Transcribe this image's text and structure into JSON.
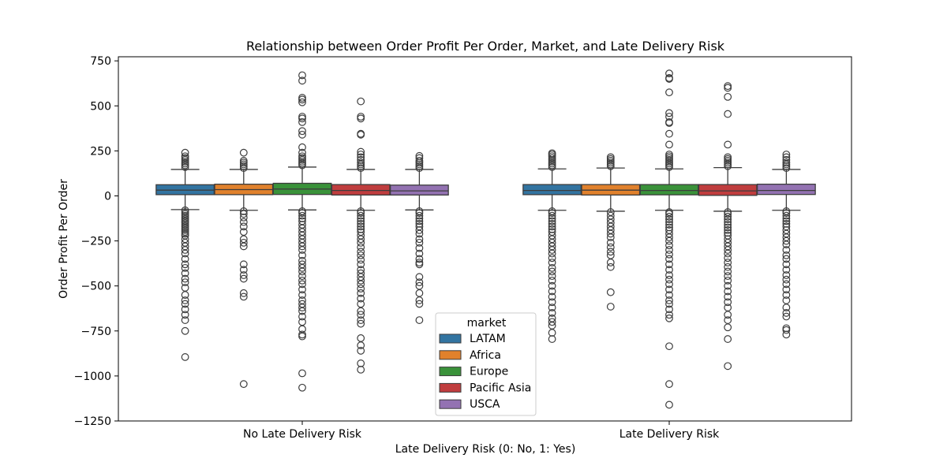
{
  "chart_data": {
    "type": "box",
    "title": "Relationship between Order Profit Per Order, Market, and Late Delivery Risk",
    "xlabel": "Late Delivery Risk (0: No, 1: Yes)",
    "ylabel": "Order Profit Per Order",
    "ylim": [
      -1250,
      770
    ],
    "yticks": [
      750,
      500,
      250,
      0,
      -250,
      -500,
      -750,
      -1000,
      -1250
    ],
    "ytick_labels": [
      "750",
      "500",
      "250",
      "0",
      "−250",
      "−500",
      "−750",
      "−1000",
      "−1250"
    ],
    "categories": [
      "No Late Delivery Risk",
      "Late Delivery Risk"
    ],
    "legend": {
      "title": "market",
      "placement": "lower center"
    },
    "series": [
      {
        "name": "LATAM",
        "color": "#3274a1",
        "boxes": [
          {
            "whisker_low": -76,
            "q1": 7,
            "median": 32,
            "q3": 62,
            "whisker_high": 147,
            "outliers_high": [
              160,
              170,
              180,
              190,
              200,
              210,
              220,
              240
            ],
            "outliers_low": [
              -80,
              -90,
              -100,
              -110,
              -120,
              -130,
              -140,
              -150,
              -160,
              -170,
              -180,
              -190,
              -200,
              -210,
              -220,
              -240,
              -260,
              -280,
              -300,
              -320,
              -350,
              -380,
              -400,
              -430,
              -460,
              -480,
              -510,
              -550,
              -580,
              -600,
              -630,
              -660,
              -690,
              -750,
              -895
            ]
          },
          {
            "whisker_low": -80,
            "q1": 7,
            "median": 30,
            "q3": 63,
            "whisker_high": 150,
            "outliers_high": [
              160,
              170,
              180,
              190,
              200,
              210,
              220,
              230,
              237
            ],
            "outliers_low": [
              -85,
              -95,
              -110,
              -125,
              -140,
              -155,
              -170,
              -185,
              -200,
              -220,
              -240,
              -260,
              -280,
              -300,
              -320,
              -345,
              -370,
              -400,
              -420,
              -445,
              -470,
              -500,
              -530,
              -560,
              -590,
              -620,
              -650,
              -680,
              -700,
              -720,
              -760,
              -795
            ]
          }
        ]
      },
      {
        "name": "Africa",
        "color": "#e1812c",
        "boxes": [
          {
            "whisker_low": -80,
            "q1": 7,
            "median": 35,
            "q3": 65,
            "whisker_high": 147,
            "outliers_high": [
              155,
              165,
              175,
              185,
              195,
              240
            ],
            "outliers_low": [
              -85,
              -100,
              -120,
              -145,
              -170,
              -200,
              -240,
              -260,
              -280,
              -380,
              -410,
              -440,
              -460,
              -540,
              -560,
              -1045
            ]
          },
          {
            "whisker_low": -85,
            "q1": 5,
            "median": 32,
            "q3": 63,
            "whisker_high": 155,
            "outliers_high": [
              165,
              175,
              185,
              195,
              205,
              215
            ],
            "outliers_low": [
              -90,
              -110,
              -130,
              -150,
              -170,
              -190,
              -210,
              -230,
              -260,
              -285,
              -310,
              -330,
              -370,
              -395,
              -535,
              -615
            ]
          }
        ]
      },
      {
        "name": "Europe",
        "color": "#3a923a",
        "boxes": [
          {
            "whisker_low": -78,
            "q1": 8,
            "median": 38,
            "q3": 70,
            "whisker_high": 160,
            "outliers_high": [
              170,
              180,
              190,
              200,
              210,
              220,
              240,
              270,
              340,
              360,
              410,
              430,
              440,
              520,
              535,
              545,
              640,
              670
            ],
            "outliers_low": [
              -85,
              -95,
              -110,
              -125,
              -140,
              -160,
              -180,
              -200,
              -220,
              -240,
              -260,
              -280,
              -300,
              -330,
              -360,
              -380,
              -400,
              -420,
              -445,
              -470,
              -490,
              -520,
              -550,
              -580,
              -600,
              -620,
              -640,
              -670,
              -700,
              -740,
              -770,
              -780,
              -985,
              -1065
            ]
          },
          {
            "whisker_low": -80,
            "q1": 6,
            "median": 30,
            "q3": 63,
            "whisker_high": 150,
            "outliers_high": [
              160,
              170,
              180,
              190,
              200,
              210,
              220,
              230,
              285,
              345,
              405,
              410,
              440,
              460,
              575,
              650,
              655,
              680
            ],
            "outliers_low": [
              -90,
              -100,
              -115,
              -130,
              -145,
              -160,
              -175,
              -190,
              -210,
              -230,
              -250,
              -275,
              -300,
              -325,
              -350,
              -380,
              -410,
              -440,
              -465,
              -490,
              -520,
              -550,
              -580,
              -600,
              -630,
              -660,
              -680,
              -835,
              -1045,
              -1160
            ]
          }
        ]
      },
      {
        "name": "Pacific Asia",
        "color": "#c03d3e",
        "boxes": [
          {
            "whisker_low": -80,
            "q1": 5,
            "median": 30,
            "q3": 63,
            "whisker_high": 147,
            "outliers_high": [
              155,
              165,
              175,
              185,
              200,
              215,
              230,
              245,
              340,
              345,
              430,
              440,
              525
            ],
            "outliers_low": [
              -85,
              -95,
              -110,
              -125,
              -140,
              -155,
              -170,
              -185,
              -200,
              -220,
              -240,
              -260,
              -285,
              -310,
              -330,
              -355,
              -380,
              -410,
              -430,
              -450,
              -470,
              -490,
              -515,
              -540,
              -570,
              -600,
              -640,
              -660,
              -690,
              -710,
              -790,
              -830,
              -860,
              -930,
              -965
            ]
          },
          {
            "whisker_low": -85,
            "q1": 3,
            "median": 28,
            "q3": 63,
            "whisker_high": 157,
            "outliers_high": [
              165,
              175,
              185,
              195,
              205,
              215,
              285,
              455,
              550,
              600,
              610
            ],
            "outliers_low": [
              -90,
              -100,
              -115,
              -130,
              -145,
              -160,
              -175,
              -190,
              -205,
              -220,
              -240,
              -260,
              -280,
              -300,
              -320,
              -345,
              -370,
              -395,
              -420,
              -445,
              -470,
              -500,
              -530,
              -560,
              -590,
              -620,
              -660,
              -690,
              -730,
              -795,
              -945
            ]
          }
        ]
      },
      {
        "name": "USCA",
        "color": "#9372b2",
        "boxes": [
          {
            "whisker_low": -78,
            "q1": 5,
            "median": 28,
            "q3": 60,
            "whisker_high": 147,
            "outliers_high": [
              155,
              165,
              175,
              185,
              195,
              210,
              222
            ],
            "outliers_low": [
              -85,
              -95,
              -110,
              -125,
              -140,
              -155,
              -170,
              -190,
              -210,
              -240,
              -260,
              -290,
              -320,
              -350,
              -370,
              -380,
              -450,
              -480,
              -500,
              -540,
              -580,
              -600,
              -690
            ]
          },
          {
            "whisker_low": -80,
            "q1": 8,
            "median": 30,
            "q3": 65,
            "whisker_high": 147,
            "outliers_high": [
              155,
              165,
              175,
              185,
              200,
              215,
              230
            ],
            "outliers_low": [
              -85,
              -95,
              -110,
              -125,
              -140,
              -155,
              -170,
              -190,
              -210,
              -230,
              -250,
              -270,
              -300,
              -330,
              -350,
              -380,
              -410,
              -440,
              -465,
              -490,
              -520,
              -550,
              -580,
              -620,
              -650,
              -670,
              -735,
              -745,
              -770
            ]
          }
        ]
      }
    ]
  }
}
